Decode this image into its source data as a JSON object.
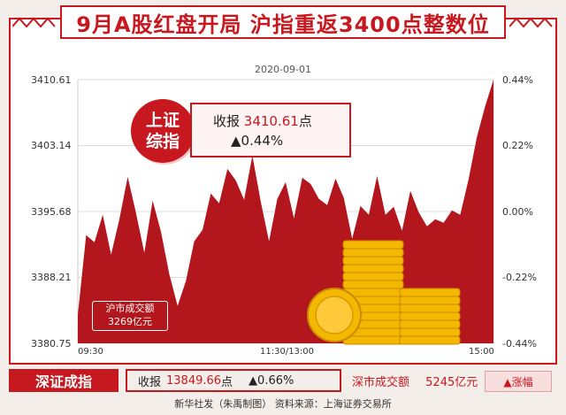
{
  "title": "9月A股红盘开局 沪指重返3400点整数位",
  "date": "2020-09-01",
  "index_badge": {
    "line1": "上证",
    "line2": "综指"
  },
  "close_info": {
    "label": "收报",
    "value": "3410.61",
    "unit": "点",
    "change": "▲0.44%"
  },
  "sh_turnover": {
    "label": "沪市成交额",
    "value": "3269亿元"
  },
  "szse": {
    "tag": "深证成指",
    "close_label": "收报",
    "close_value": "13849.66",
    "close_unit": "点",
    "change": "▲0.66%",
    "turnover_label": "深市成交额",
    "turnover_value": "5245亿元"
  },
  "legend": {
    "label": "▲涨幅"
  },
  "footer": "新华社发（朱禹制图） 资料来源：上海证券交易所",
  "colors": {
    "accent": "#c8181f",
    "area": "#b3161c",
    "gold": "#f5b800"
  },
  "chart_data": {
    "type": "area",
    "y_ticks_left": [
      "3410.61",
      "3403.14",
      "3395.68",
      "3388.21",
      "3380.75"
    ],
    "y_ticks_right": [
      "0.44%",
      "0.22%",
      "0.00%",
      "-0.22%",
      "-0.44%"
    ],
    "x_ticks": [
      "09:30",
      "11:30/13:00",
      "15:00"
    ],
    "ylim": [
      3380.75,
      3410.61
    ],
    "x": [
      0,
      0.02,
      0.04,
      0.06,
      0.08,
      0.1,
      0.12,
      0.14,
      0.16,
      0.18,
      0.2,
      0.22,
      0.24,
      0.26,
      0.28,
      0.3,
      0.32,
      0.34,
      0.36,
      0.38,
      0.4,
      0.42,
      0.44,
      0.46,
      0.48,
      0.5,
      0.52,
      0.54,
      0.56,
      0.58,
      0.6,
      0.62,
      0.64,
      0.66,
      0.68,
      0.7,
      0.72,
      0.74,
      0.76,
      0.78,
      0.8,
      0.82,
      0.84,
      0.86,
      0.88,
      0.9,
      0.92,
      0.94,
      0.96,
      0.98,
      1.0
    ],
    "values": [
      3384.0,
      3393.0,
      3392.2,
      3395.3,
      3390.8,
      3394.8,
      3399.6,
      3395.5,
      3391.0,
      3396.9,
      3393.4,
      3388.6,
      3385.0,
      3387.8,
      3392.3,
      3393.6,
      3397.7,
      3396.6,
      3400.5,
      3399.2,
      3397.0,
      3402.0,
      3396.8,
      3392.3,
      3397.1,
      3399.0,
      3394.9,
      3399.5,
      3398.8,
      3397.1,
      3396.4,
      3399.4,
      3397.2,
      3392.6,
      3396.3,
      3395.3,
      3399.7,
      3395.3,
      3396.2,
      3393.5,
      3398.0,
      3395.6,
      3394.0,
      3394.8,
      3394.4,
      3395.8,
      3395.3,
      3399.3,
      3404.1,
      3407.6,
      3410.6
    ]
  }
}
